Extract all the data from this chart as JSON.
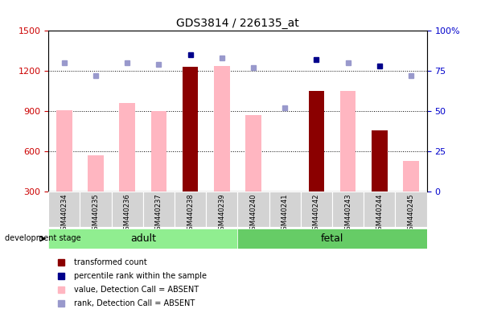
{
  "title": "GDS3814 / 226135_at",
  "samples": [
    "GSM440234",
    "GSM440235",
    "GSM440236",
    "GSM440237",
    "GSM440238",
    "GSM440239",
    "GSM440240",
    "GSM440241",
    "GSM440242",
    "GSM440243",
    "GSM440244",
    "GSM440245"
  ],
  "groups": [
    "adult",
    "adult",
    "adult",
    "adult",
    "adult",
    "adult",
    "fetal",
    "fetal",
    "fetal",
    "fetal",
    "fetal",
    "fetal"
  ],
  "bar_present_values": [
    null,
    null,
    null,
    null,
    1230,
    null,
    null,
    null,
    1050,
    null,
    760,
    null
  ],
  "bar_absent_values": [
    910,
    570,
    960,
    900,
    null,
    1240,
    870,
    null,
    null,
    1050,
    null,
    530
  ],
  "rank_present_values": [
    null,
    null,
    null,
    null,
    85,
    null,
    null,
    null,
    82,
    null,
    78,
    null
  ],
  "rank_absent_values": [
    80,
    72,
    80,
    79,
    null,
    83,
    77,
    52,
    null,
    80,
    null,
    72
  ],
  "ylim_left": [
    300,
    1500
  ],
  "ylim_right": [
    0,
    100
  ],
  "yticks_left": [
    300,
    600,
    900,
    1200,
    1500
  ],
  "yticks_right": [
    0,
    25,
    50,
    75,
    100
  ],
  "yticks_right_labels": [
    "0",
    "25",
    "50",
    "75",
    "100%"
  ],
  "ylabel_left_color": "#CC0000",
  "ylabel_right_color": "#0000CC",
  "bar_present_color": "#8B0000",
  "bar_absent_color": "#FFB6C1",
  "rank_present_color": "#00008B",
  "rank_absent_color": "#9999CC",
  "adult_color": "#90EE90",
  "fetal_color": "#66CC66",
  "group_label": "development stage",
  "plot_bg": "#FFFFFF",
  "legend_items": [
    [
      "#8B0000",
      "transformed count"
    ],
    [
      "#00008B",
      "percentile rank within the sample"
    ],
    [
      "#FFB6C1",
      "value, Detection Call = ABSENT"
    ],
    [
      "#9999CC",
      "rank, Detection Call = ABSENT"
    ]
  ]
}
